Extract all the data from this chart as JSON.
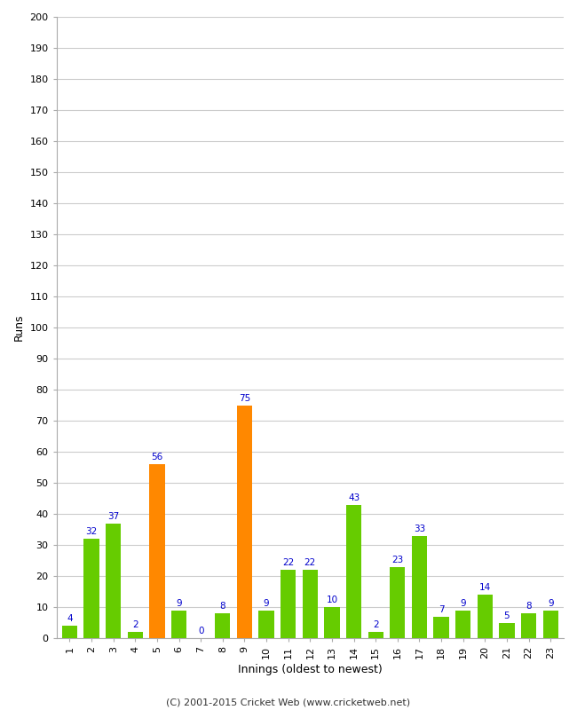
{
  "innings": [
    1,
    2,
    3,
    4,
    5,
    6,
    7,
    8,
    9,
    10,
    11,
    12,
    13,
    14,
    15,
    16,
    17,
    18,
    19,
    20,
    21,
    22,
    23
  ],
  "runs": [
    4,
    32,
    37,
    2,
    56,
    9,
    0,
    8,
    75,
    9,
    22,
    22,
    10,
    43,
    2,
    23,
    33,
    7,
    9,
    14,
    5,
    8,
    9
  ],
  "colors": [
    "#66cc00",
    "#66cc00",
    "#66cc00",
    "#66cc00",
    "#ff8800",
    "#66cc00",
    "#66cc00",
    "#66cc00",
    "#ff8800",
    "#66cc00",
    "#66cc00",
    "#66cc00",
    "#66cc00",
    "#66cc00",
    "#66cc00",
    "#66cc00",
    "#66cc00",
    "#66cc00",
    "#66cc00",
    "#66cc00",
    "#66cc00",
    "#66cc00",
    "#66cc00"
  ],
  "ylabel": "Runs",
  "xlabel": "Innings (oldest to newest)",
  "ylim": [
    0,
    200
  ],
  "yticks": [
    0,
    10,
    20,
    30,
    40,
    50,
    60,
    70,
    80,
    90,
    100,
    110,
    120,
    130,
    140,
    150,
    160,
    170,
    180,
    190,
    200
  ],
  "label_color": "#0000cc",
  "background_color": "#ffffff",
  "grid_color": "#cccccc",
  "footer": "(C) 2001-2015 Cricket Web (www.cricketweb.net)",
  "bar_width": 0.7
}
